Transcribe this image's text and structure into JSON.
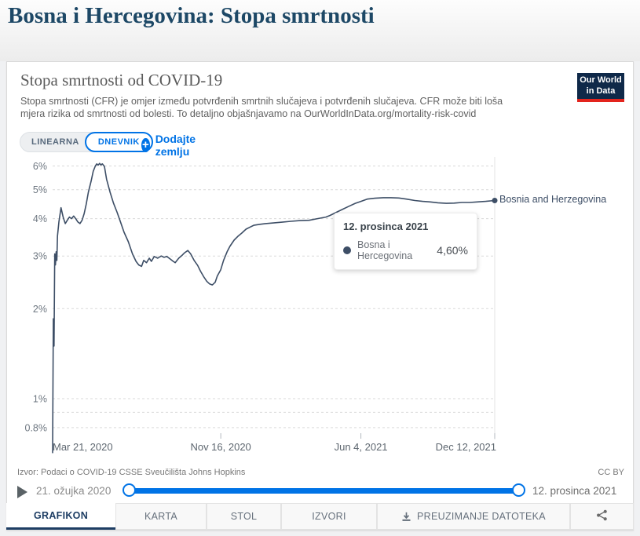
{
  "page": {
    "title": "Bosna i Hercegovina: Stopa smrtnosti"
  },
  "logo": {
    "line1": "Our World",
    "line2": "in Data"
  },
  "header": {
    "title": "Stopa smrtnosti od COVID-19",
    "subtitle_lines": [
      "Stopa smrtnosti (CFR) je omjer između potvrđenih smrtnih slučajeva i potvrđenih slučajeva. CFR može biti loša",
      "mjera rizika od smrtnosti od bolesti. To detaljno objašnjavamo na OurWorldInData.org/mortality-risk-covid"
    ]
  },
  "controls": {
    "scale_linear": "LINEARNA",
    "scale_log": "DNEVNIK",
    "add_country": "Dodajte zemlju",
    "plus_glyph": "+"
  },
  "tooltip": {
    "date": "12. prosinca 2021",
    "entity": "Bosna i Hercegovina",
    "value": "4,60%"
  },
  "footer": {
    "source": "Izvor: Podaci o COVID-19 CSSE Sveučilišta Johns Hopkins",
    "license": "CC BY"
  },
  "timeline": {
    "start": "21. ožujka 2020",
    "end": "12. prosinca 2021"
  },
  "tabs": [
    {
      "label": "GRAFIKON",
      "active": true
    },
    {
      "label": "KARTA",
      "active": false
    },
    {
      "label": "STOL",
      "active": false
    },
    {
      "label": "IZVORI",
      "active": false
    },
    {
      "label": "PREUZIMANJE DATOTEKA",
      "active": false,
      "icon": "download"
    },
    {
      "label": "",
      "active": false,
      "icon": "share"
    }
  ],
  "chart_data": {
    "type": "line",
    "title": "Stopa smrtnosti od COVID-19",
    "xlabel": "",
    "ylabel": "",
    "y_scale": "log",
    "y_unit": "%",
    "ylim": [
      0.64,
      6.3
    ],
    "x_start_date": "2020-03-21",
    "x_end_date": "2021-12-12",
    "x_total_days": 631,
    "x_ticks": [
      {
        "day": 0,
        "label": "Mar 21, 2020"
      },
      {
        "day": 240,
        "label": "Nov 16, 2020"
      },
      {
        "day": 440,
        "label": "Jun 4, 2021"
      },
      {
        "day": 631,
        "label": "Dec 12, 2021"
      }
    ],
    "y_ticks": [
      {
        "v": 6,
        "label": "6%"
      },
      {
        "v": 5,
        "label": "5%"
      },
      {
        "v": 4,
        "label": "4%"
      },
      {
        "v": 3,
        "label": "3%"
      },
      {
        "v": 2,
        "label": "2%"
      },
      {
        "v": 1,
        "label": "1%"
      },
      {
        "v": 0.9,
        "label": ""
      },
      {
        "v": 0.8,
        "label": "0.8%"
      }
    ],
    "grid": true,
    "colors": {
      "line": "#3d4e66",
      "accent_blue": "#0073e6",
      "grid": "#d9d9d9"
    },
    "series": [
      {
        "name": "Bosnia and Herzegovina",
        "color": "#3d4e66",
        "last_value_pct": 4.6,
        "points_day_value": [
          [
            0,
            0.66
          ],
          [
            1,
            1.85
          ],
          [
            2,
            1.5
          ],
          [
            3,
            3.05
          ],
          [
            4,
            2.8
          ],
          [
            5,
            3.1
          ],
          [
            6,
            2.9
          ],
          [
            7,
            3.5
          ],
          [
            9,
            3.9
          ],
          [
            12,
            4.35
          ],
          [
            15,
            4.05
          ],
          [
            18,
            3.85
          ],
          [
            21,
            3.95
          ],
          [
            24,
            4.05
          ],
          [
            27,
            4.0
          ],
          [
            30,
            4.08
          ],
          [
            33,
            4.0
          ],
          [
            36,
            3.9
          ],
          [
            39,
            3.85
          ],
          [
            42,
            3.95
          ],
          [
            45,
            4.16
          ],
          [
            48,
            4.47
          ],
          [
            51,
            4.9
          ],
          [
            55,
            5.35
          ],
          [
            58,
            5.76
          ],
          [
            61,
            6.0
          ],
          [
            63,
            6.1
          ],
          [
            65,
            6.04
          ],
          [
            67,
            6.12
          ],
          [
            69,
            6.05
          ],
          [
            71,
            6.1
          ],
          [
            74,
            5.98
          ],
          [
            77,
            5.42
          ],
          [
            82,
            4.9
          ],
          [
            87,
            4.5
          ],
          [
            92,
            4.2
          ],
          [
            96,
            3.95
          ],
          [
            102,
            3.6
          ],
          [
            108,
            3.35
          ],
          [
            114,
            3.05
          ],
          [
            119,
            2.88
          ],
          [
            123,
            2.8
          ],
          [
            127,
            2.77
          ],
          [
            130,
            2.9
          ],
          [
            134,
            2.85
          ],
          [
            138,
            2.95
          ],
          [
            141,
            2.88
          ],
          [
            145,
            2.99
          ],
          [
            150,
            2.95
          ],
          [
            155,
            3.0
          ],
          [
            159,
            2.97
          ],
          [
            163,
            2.99
          ],
          [
            168,
            2.93
          ],
          [
            172,
            2.88
          ],
          [
            175,
            2.85
          ],
          [
            180,
            2.95
          ],
          [
            185,
            3.02
          ],
          [
            188,
            3.07
          ],
          [
            193,
            3.13
          ],
          [
            197,
            3.05
          ],
          [
            202,
            2.9
          ],
          [
            207,
            2.79
          ],
          [
            211,
            2.67
          ],
          [
            216,
            2.55
          ],
          [
            220,
            2.47
          ],
          [
            224,
            2.42
          ],
          [
            228,
            2.4
          ],
          [
            232,
            2.45
          ],
          [
            235,
            2.57
          ],
          [
            240,
            2.7
          ],
          [
            244,
            2.9
          ],
          [
            249,
            3.1
          ],
          [
            253,
            3.23
          ],
          [
            259,
            3.39
          ],
          [
            265,
            3.5
          ],
          [
            270,
            3.58
          ],
          [
            276,
            3.69
          ],
          [
            282,
            3.75
          ],
          [
            287,
            3.8
          ],
          [
            296,
            3.83
          ],
          [
            304,
            3.85
          ],
          [
            315,
            3.87
          ],
          [
            326,
            3.89
          ],
          [
            340,
            3.92
          ],
          [
            353,
            3.94
          ],
          [
            366,
            3.95
          ],
          [
            378,
            4.0
          ],
          [
            390,
            4.05
          ],
          [
            396,
            4.1
          ],
          [
            405,
            4.2
          ],
          [
            414,
            4.3
          ],
          [
            423,
            4.4
          ],
          [
            432,
            4.5
          ],
          [
            440,
            4.57
          ],
          [
            449,
            4.65
          ],
          [
            460,
            4.68
          ],
          [
            472,
            4.7
          ],
          [
            483,
            4.7
          ],
          [
            494,
            4.69
          ],
          [
            505,
            4.65
          ],
          [
            517,
            4.6
          ],
          [
            528,
            4.57
          ],
          [
            539,
            4.55
          ],
          [
            550,
            4.52
          ],
          [
            562,
            4.5
          ],
          [
            573,
            4.51
          ],
          [
            584,
            4.53
          ],
          [
            595,
            4.53
          ],
          [
            606,
            4.55
          ],
          [
            618,
            4.57
          ],
          [
            631,
            4.6
          ]
        ]
      }
    ]
  }
}
